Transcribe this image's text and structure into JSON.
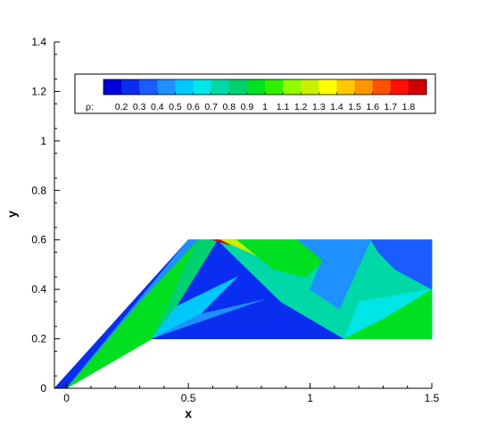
{
  "chart_data": {
    "type": "heatmap",
    "variable_label": "ρ:",
    "xlabel": "x",
    "ylabel": "y",
    "xlim": [
      -0.05,
      1.5
    ],
    "ylim": [
      0,
      1.4
    ],
    "x_ticks": [
      "0",
      "0.5",
      "1",
      "1.5"
    ],
    "y_ticks": [
      "0",
      "0.2",
      "0.4",
      "0.6",
      "0.8",
      "1",
      "1.2",
      "1.4"
    ],
    "legend": {
      "placement": "top",
      "levels": [
        "0.2",
        "0.3",
        "0.4",
        "0.5",
        "0.6",
        "0.7",
        "0.8",
        "0.9",
        "1",
        "1.1",
        "1.2",
        "1.3",
        "1.4",
        "1.5",
        "1.6",
        "1.7",
        "1.8"
      ],
      "colors": [
        "#0000dd",
        "#0a2ef0",
        "#1a5cff",
        "#1e90ff",
        "#00c8ff",
        "#00e5e5",
        "#00d8a8",
        "#00d070",
        "#00e020",
        "#30f000",
        "#90ff00",
        "#c8f000",
        "#ffff00",
        "#ffc800",
        "#ff9600",
        "#ff5000",
        "#ff1000",
        "#d00000"
      ]
    },
    "regions": [
      {
        "points": [
          [
            -0.05,
            0
          ],
          [
            0.5,
            0.6
          ],
          [
            1.5,
            0.6
          ],
          [
            1.5,
            0.2
          ],
          [
            0.35,
            0.2
          ],
          [
            0,
            0
          ],
          [
            -0.05,
            0
          ]
        ],
        "level": 0.25
      },
      {
        "points": [
          [
            0,
            0
          ],
          [
            0.35,
            0.2
          ],
          [
            0.6,
            0.6
          ],
          [
            0.5,
            0.6
          ]
        ],
        "level": 0.95
      },
      {
        "points": [
          [
            0,
            0
          ],
          [
            0.5,
            0.6
          ],
          [
            0.54,
            0.6
          ],
          [
            0.3,
            0.35
          ]
        ],
        "level": 0.45
      },
      {
        "points": [
          [
            0.35,
            0.2
          ],
          [
            0.54,
            0.6
          ],
          [
            0.62,
            0.6
          ],
          [
            0.45,
            0.33
          ]
        ],
        "level": 0.82
      },
      {
        "points": [
          [
            0.35,
            0.2
          ],
          [
            0.45,
            0.33
          ],
          [
            0.7,
            0.45
          ],
          [
            0.55,
            0.3
          ]
        ],
        "level": 0.55
      },
      {
        "points": [
          [
            0.35,
            0.2
          ],
          [
            0.55,
            0.3
          ],
          [
            0.82,
            0.36
          ]
        ],
        "level": 0.48
      },
      {
        "points": [
          [
            0.35,
            0.2
          ],
          [
            0.82,
            0.36
          ],
          [
            0.88,
            0.35
          ],
          [
            1.14,
            0.2
          ]
        ],
        "level": 0.22
      },
      {
        "points": [
          [
            0.62,
            0.6
          ],
          [
            0.88,
            0.35
          ],
          [
            1.14,
            0.2
          ],
          [
            1.5,
            0.2
          ],
          [
            1.5,
            0.6
          ]
        ],
        "level": 0.75
      },
      {
        "points": [
          [
            0.63,
            0.6
          ],
          [
            0.72,
            0.6
          ],
          [
            0.85,
            0.5
          ],
          [
            0.75,
            0.55
          ]
        ],
        "level": 1.25
      },
      {
        "points": [
          [
            0.7,
            0.6
          ],
          [
            0.95,
            0.6
          ],
          [
            1.1,
            0.55
          ],
          [
            0.98,
            0.45
          ],
          [
            0.85,
            0.48
          ]
        ],
        "level": 0.9
      },
      {
        "points": [
          [
            0.95,
            0.6
          ],
          [
            1.25,
            0.6
          ],
          [
            1.18,
            0.45
          ],
          [
            1.12,
            0.32
          ],
          [
            1.0,
            0.4
          ],
          [
            1.05,
            0.52
          ]
        ],
        "level": 0.45
      },
      {
        "points": [
          [
            1.25,
            0.6
          ],
          [
            1.5,
            0.6
          ],
          [
            1.5,
            0.4
          ],
          [
            1.35,
            0.48
          ],
          [
            1.28,
            0.55
          ]
        ],
        "level": 0.32
      },
      {
        "points": [
          [
            1.2,
            0.35
          ],
          [
            1.5,
            0.4
          ],
          [
            1.5,
            0.2
          ],
          [
            1.14,
            0.2
          ]
        ],
        "level": 0.6
      },
      {
        "points": [
          [
            1.14,
            0.2
          ],
          [
            1.3,
            0.28
          ],
          [
            1.42,
            0.35
          ],
          [
            1.5,
            0.4
          ],
          [
            1.5,
            0.2
          ]
        ],
        "level": 0.95
      },
      {
        "points": [
          [
            0.6,
            0.6
          ],
          [
            0.63,
            0.6
          ],
          [
            0.67,
            0.58
          ]
        ],
        "level": 1.8
      }
    ]
  }
}
